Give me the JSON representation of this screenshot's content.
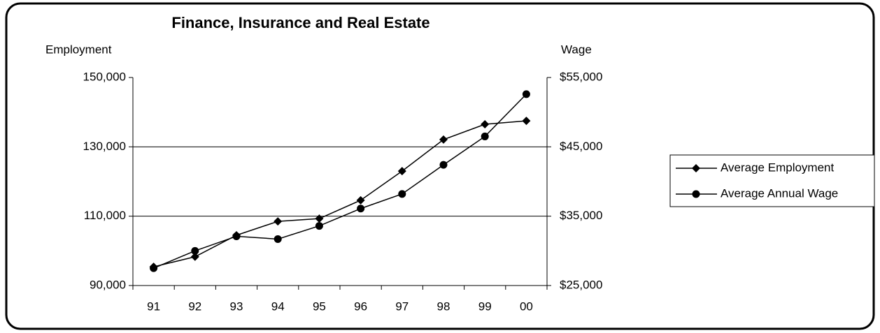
{
  "chart_data": {
    "type": "line",
    "title": "Finance, Insurance and Real Estate",
    "y_label": "Employment",
    "y2_label": "Wage",
    "categories": [
      "91",
      "92",
      "93",
      "94",
      "95",
      "96",
      "97",
      "98",
      "99",
      "00"
    ],
    "series": [
      {
        "name": "Average Employment",
        "color": "#000000",
        "marker": "diamond",
        "values": [
          95400,
          98300,
          104500,
          108500,
          109300,
          114600,
          123000,
          132100,
          136500,
          137500
        ]
      },
      {
        "name": "Average Annual Wage",
        "color": "#000000",
        "marker": "circle",
        "axis": "y2",
        "values": [
          27500,
          30000,
          32100,
          31700,
          33600,
          36100,
          38200,
          42400,
          46500,
          52600
        ]
      }
    ],
    "ylim": [
      90000,
      150000
    ],
    "yticks": [
      {
        "value": 90000,
        "label": "90,000"
      },
      {
        "value": 110000,
        "label": "110,000"
      },
      {
        "value": 130000,
        "label": "130,000"
      },
      {
        "value": 150000,
        "label": "150,000"
      }
    ],
    "y2lim": [
      25000,
      55000
    ],
    "y2ticks": [
      {
        "value": 25000,
        "label": "$25,000"
      },
      {
        "value": 35000,
        "label": "$35,000"
      },
      {
        "value": 45000,
        "label": "$45,000"
      },
      {
        "value": 55000,
        "label": "$55,000"
      }
    ],
    "grid": true,
    "legend": "right"
  }
}
